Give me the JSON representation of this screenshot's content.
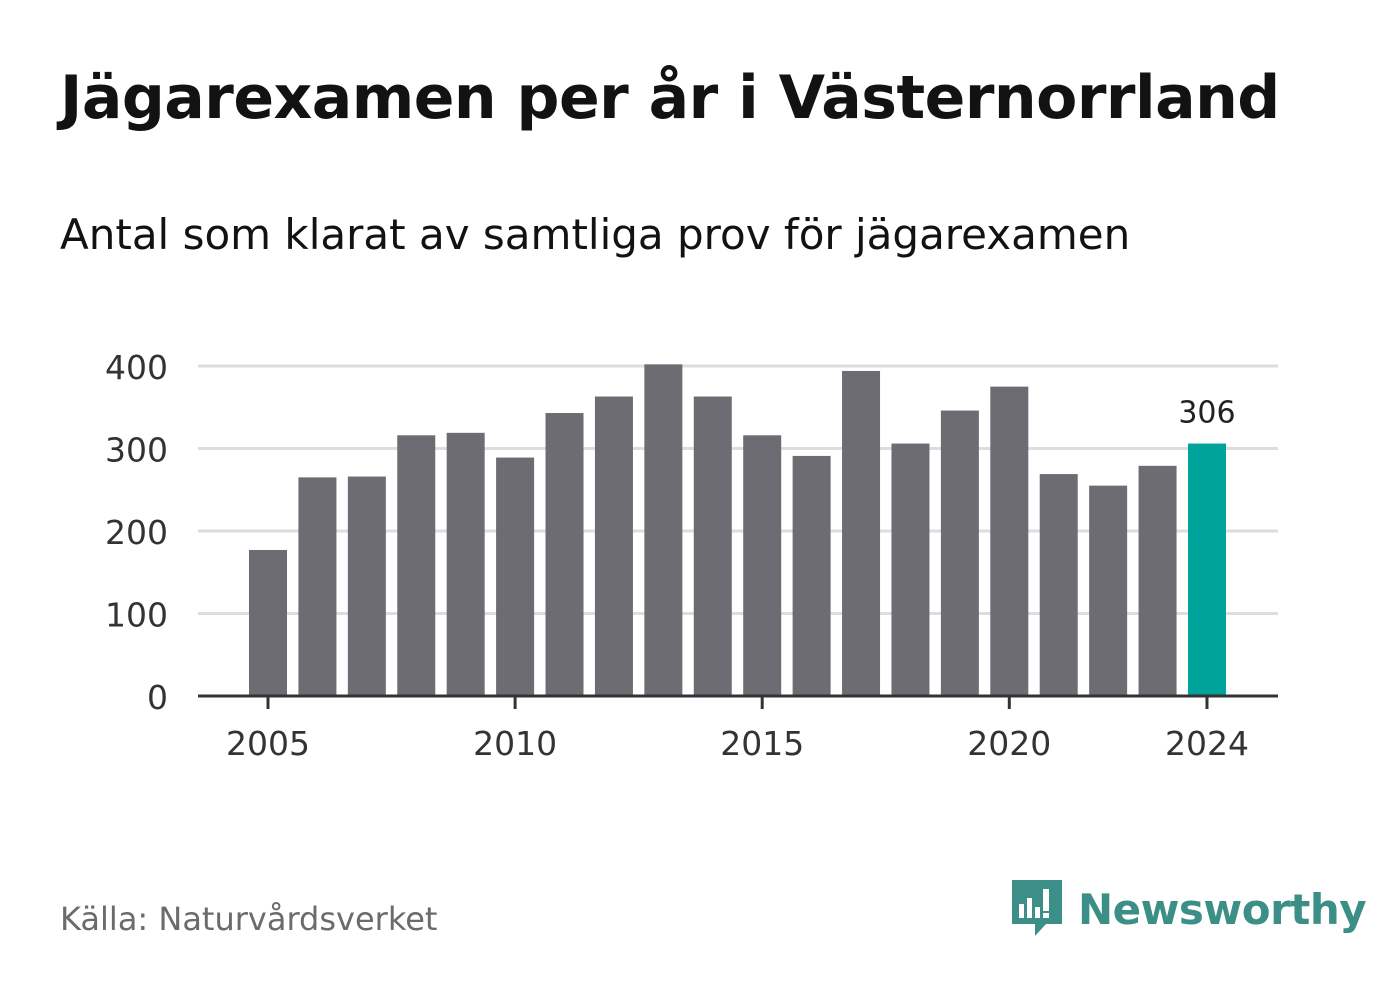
{
  "title": "Jägarexamen per år i Västernorrland",
  "subtitle": "Antal som klarat av samtliga prov för jägarexamen",
  "source": "Källa: Naturvårdsverket",
  "brand": {
    "name": "Newsworthy",
    "color": "#3c8f86",
    "icon": "newsworthy-logo-icon"
  },
  "colors": {
    "bar": "#6d6c72",
    "highlight": "#00a39a",
    "grid": "#dddddd",
    "axis": "#333333"
  },
  "chart_data": {
    "type": "bar",
    "title": "Jägarexamen per år i Västernorrland",
    "subtitle": "Antal som klarat av samtliga prov för jägarexamen",
    "categories": [
      2005,
      2006,
      2007,
      2008,
      2009,
      2010,
      2011,
      2012,
      2013,
      2014,
      2015,
      2016,
      2017,
      2018,
      2019,
      2020,
      2021,
      2022,
      2023,
      2024
    ],
    "values": [
      177,
      265,
      266,
      316,
      319,
      289,
      343,
      363,
      402,
      363,
      316,
      291,
      394,
      306,
      346,
      375,
      269,
      255,
      279,
      306
    ],
    "highlight": {
      "category": 2024,
      "label": "306"
    },
    "ylim": [
      0,
      400
    ],
    "yticks": [
      0,
      100,
      200,
      300,
      400
    ],
    "xticks": [
      2005,
      2010,
      2015,
      2020,
      2024
    ],
    "xlabel": "",
    "ylabel": "",
    "grid": true,
    "legend": "none"
  }
}
